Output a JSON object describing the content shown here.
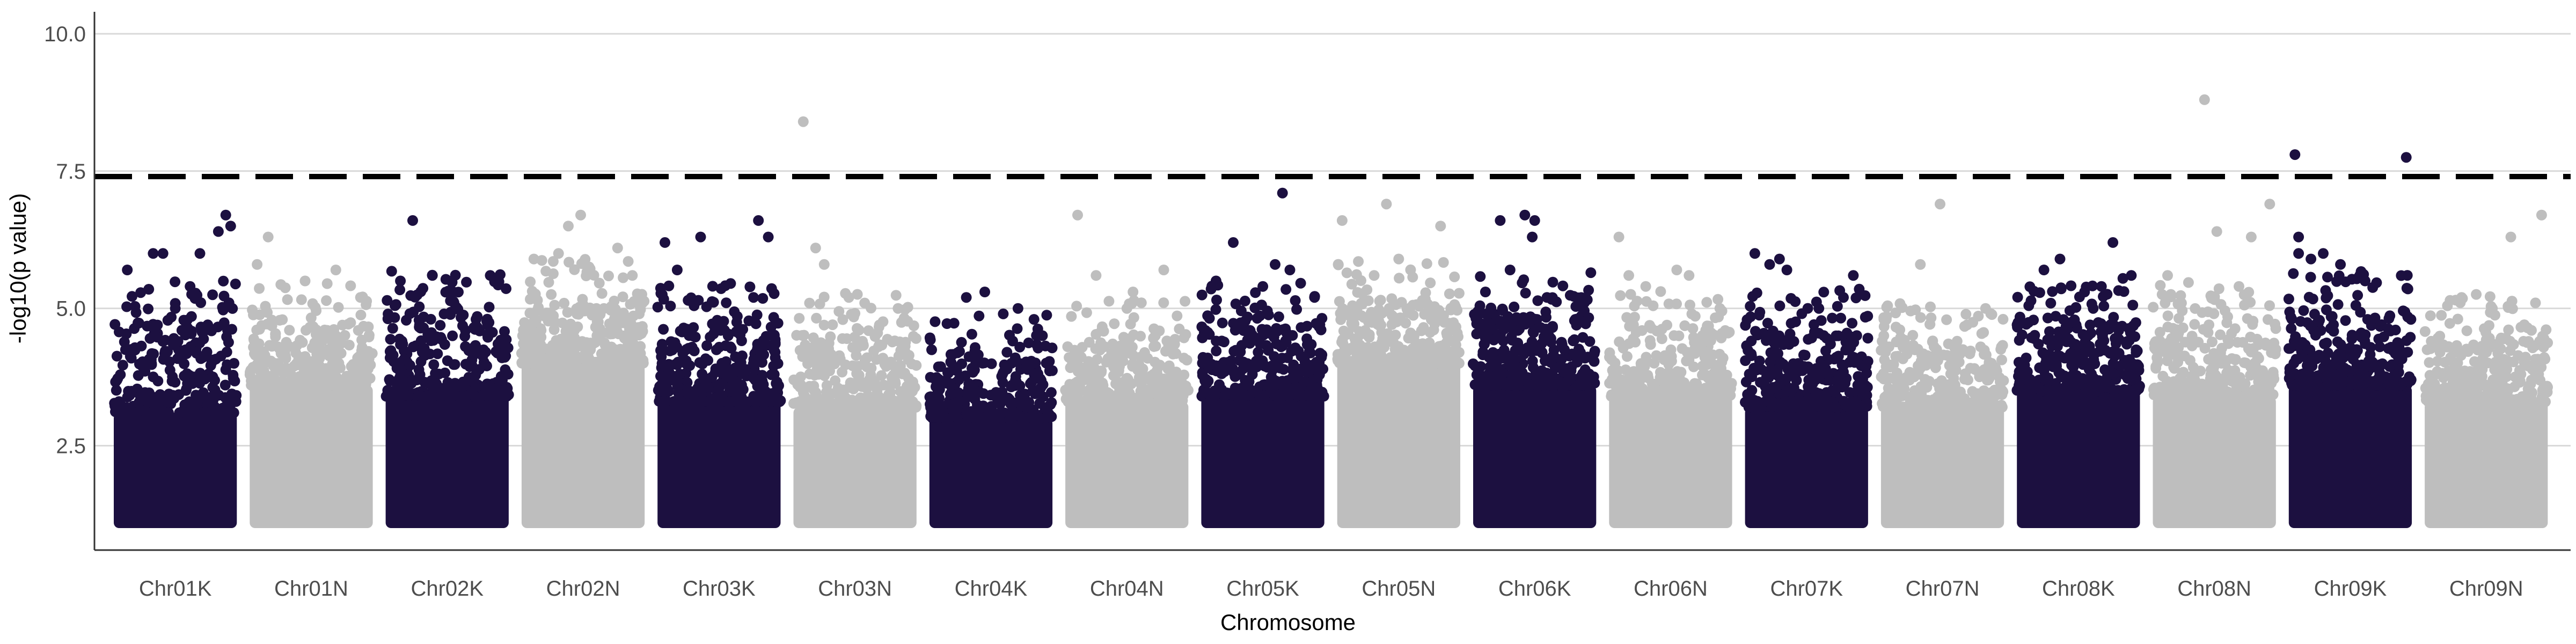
{
  "chart_data": {
    "type": "scatter",
    "title": "",
    "xlabel": "Chromosome",
    "ylabel": "-log10(p value)",
    "ylim": [
      0.6,
      10.4
    ],
    "yticks": [
      2.5,
      5.0,
      7.5,
      10.0
    ],
    "ytick_labels": [
      "2.5",
      "5.0",
      "7.5",
      "10.0"
    ],
    "grid": "horizontal major lines",
    "legend": "none",
    "significance_threshold": 7.4,
    "colors": {
      "dark": "#1c1040",
      "light": "#bebebe",
      "threshold": "#000000",
      "grid": "#d9d9d9",
      "axis": "#333333"
    },
    "categories": [
      "Chr01K",
      "Chr01N",
      "Chr02K",
      "Chr02N",
      "Chr03K",
      "Chr03N",
      "Chr04K",
      "Chr04N",
      "Chr05K",
      "Chr05N",
      "Chr06K",
      "Chr06N",
      "Chr07K",
      "Chr07N",
      "Chr08K",
      "Chr08N",
      "Chr09K",
      "Chr09N"
    ],
    "series": [
      {
        "category": "Chr01K",
        "color": "dark",
        "dense_max": 3.1,
        "sparse_max": 4.6,
        "top_points": [
          [
            0.11,
            5.7
          ],
          [
            0.32,
            6.0
          ],
          [
            0.4,
            6.0
          ],
          [
            0.62,
            5.4
          ],
          [
            0.7,
            6.0
          ],
          [
            0.85,
            6.4
          ],
          [
            0.91,
            6.7
          ],
          [
            0.95,
            6.5
          ],
          [
            0.5,
            5.0
          ]
        ]
      },
      {
        "category": "Chr01N",
        "color": "light",
        "dense_max": 3.6,
        "sparse_max": 4.6,
        "top_points": [
          [
            0.06,
            5.8
          ],
          [
            0.15,
            6.3
          ],
          [
            0.45,
            5.5
          ],
          [
            0.7,
            5.7
          ],
          [
            0.9,
            5.2
          ]
        ]
      },
      {
        "category": "Chr02K",
        "color": "dark",
        "dense_max": 3.4,
        "sparse_max": 4.8,
        "top_points": [
          [
            0.12,
            5.5
          ],
          [
            0.22,
            6.6
          ],
          [
            0.38,
            5.6
          ],
          [
            0.55,
            5.3
          ],
          [
            0.85,
            5.6
          ]
        ]
      },
      {
        "category": "Chr02N",
        "color": "light",
        "dense_max": 4.0,
        "sparse_max": 5.0,
        "top_points": [
          [
            0.1,
            5.9
          ],
          [
            0.3,
            6.0
          ],
          [
            0.38,
            6.5
          ],
          [
            0.48,
            6.7
          ],
          [
            0.78,
            6.1
          ],
          [
            0.9,
            5.6
          ]
        ]
      },
      {
        "category": "Chr03K",
        "color": "dark",
        "dense_max": 3.3,
        "sparse_max": 4.6,
        "top_points": [
          [
            0.06,
            6.2
          ],
          [
            0.16,
            5.7
          ],
          [
            0.35,
            6.3
          ],
          [
            0.82,
            6.6
          ],
          [
            0.9,
            6.3
          ],
          [
            0.78,
            5.2
          ]
        ]
      },
      {
        "category": "Chr03N",
        "color": "light",
        "dense_max": 3.2,
        "sparse_max": 4.4,
        "top_points": [
          [
            0.08,
            8.4
          ],
          [
            0.18,
            6.1
          ],
          [
            0.25,
            5.8
          ],
          [
            0.45,
            5.2
          ],
          [
            0.85,
            5.0
          ]
        ]
      },
      {
        "category": "Chr04K",
        "color": "dark",
        "dense_max": 3.0,
        "sparse_max": 4.0,
        "top_points": [
          [
            0.3,
            5.2
          ],
          [
            0.45,
            5.3
          ],
          [
            0.6,
            4.9
          ],
          [
            0.72,
            5.0
          ],
          [
            0.85,
            4.8
          ]
        ]
      },
      {
        "category": "Chr04N",
        "color": "light",
        "dense_max": 3.3,
        "sparse_max": 4.3,
        "top_points": [
          [
            0.1,
            6.7
          ],
          [
            0.25,
            5.6
          ],
          [
            0.5,
            5.0
          ],
          [
            0.8,
            5.7
          ],
          [
            0.55,
            5.3
          ]
        ]
      },
      {
        "category": "Chr05K",
        "color": "dark",
        "dense_max": 3.4,
        "sparse_max": 4.6,
        "top_points": [
          [
            0.12,
            5.5
          ],
          [
            0.26,
            6.2
          ],
          [
            0.5,
            5.4
          ],
          [
            0.6,
            5.8
          ],
          [
            0.66,
            7.1
          ],
          [
            0.72,
            5.7
          ],
          [
            0.92,
            5.2
          ]
        ]
      },
      {
        "category": "Chr05N",
        "color": "light",
        "dense_max": 4.0,
        "sparse_max": 5.0,
        "top_points": [
          [
            0.04,
            6.6
          ],
          [
            0.3,
            5.6
          ],
          [
            0.4,
            6.9
          ],
          [
            0.5,
            5.9
          ],
          [
            0.84,
            6.5
          ]
        ]
      },
      {
        "category": "Chr06K",
        "color": "dark",
        "dense_max": 3.6,
        "sparse_max": 4.8,
        "top_points": [
          [
            0.1,
            5.3
          ],
          [
            0.22,
            6.6
          ],
          [
            0.3,
            5.7
          ],
          [
            0.42,
            6.7
          ],
          [
            0.48,
            6.3
          ],
          [
            0.5,
            6.6
          ],
          [
            0.6,
            5.2
          ]
        ]
      },
      {
        "category": "Chr06N",
        "color": "light",
        "dense_max": 3.4,
        "sparse_max": 4.5,
        "top_points": [
          [
            0.08,
            6.3
          ],
          [
            0.16,
            5.6
          ],
          [
            0.55,
            5.7
          ],
          [
            0.65,
            5.6
          ],
          [
            0.9,
            5.0
          ]
        ]
      },
      {
        "category": "Chr07K",
        "color": "dark",
        "dense_max": 3.2,
        "sparse_max": 4.5,
        "top_points": [
          [
            0.08,
            6.0
          ],
          [
            0.2,
            5.8
          ],
          [
            0.28,
            5.9
          ],
          [
            0.34,
            5.7
          ],
          [
            0.6,
            5.0
          ],
          [
            0.8,
            5.2
          ],
          [
            0.88,
            5.6
          ]
        ]
      },
      {
        "category": "Chr07N",
        "color": "light",
        "dense_max": 3.2,
        "sparse_max": 4.3,
        "top_points": [
          [
            0.32,
            5.8
          ],
          [
            0.48,
            6.9
          ],
          [
            0.7,
            4.7
          ],
          [
            0.85,
            5.0
          ]
        ]
      },
      {
        "category": "Chr08K",
        "color": "dark",
        "dense_max": 3.5,
        "sparse_max": 4.7,
        "top_points": [
          [
            0.22,
            5.7
          ],
          [
            0.35,
            5.9
          ],
          [
            0.55,
            5.3
          ],
          [
            0.78,
            6.2
          ],
          [
            0.93,
            5.6
          ],
          [
            0.62,
            5.0
          ]
        ]
      },
      {
        "category": "Chr08N",
        "color": "light",
        "dense_max": 3.4,
        "sparse_max": 4.6,
        "top_points": [
          [
            0.12,
            5.6
          ],
          [
            0.42,
            8.8
          ],
          [
            0.52,
            6.4
          ],
          [
            0.7,
            5.4
          ],
          [
            0.8,
            6.3
          ],
          [
            0.95,
            6.9
          ]
        ]
      },
      {
        "category": "Chr09K",
        "color": "dark",
        "dense_max": 3.6,
        "sparse_max": 4.8,
        "top_points": [
          [
            0.08,
            6.3
          ],
          [
            0.18,
            5.9
          ],
          [
            0.28,
            6.0
          ],
          [
            0.42,
            5.8
          ],
          [
            0.62,
            5.5
          ],
          [
            0.08,
            6.0
          ]
        ]
      },
      {
        "category": "Chr09N",
        "color": "light",
        "dense_max": 3.3,
        "sparse_max": 4.4,
        "top_points": [
          [
            0.3,
            5.2
          ],
          [
            0.55,
            5.0
          ],
          [
            0.7,
            6.3
          ],
          [
            0.95,
            6.7
          ],
          [
            0.9,
            5.1
          ]
        ]
      }
    ],
    "extra_top_points": [
      {
        "category": "Chr09K",
        "x_frac": 0.05,
        "y": 7.8
      },
      {
        "category": "Chr09N",
        "x_frac": -0.15,
        "y": 7.75
      }
    ]
  }
}
